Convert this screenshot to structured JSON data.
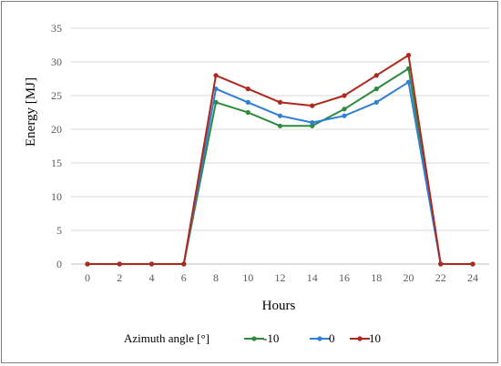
{
  "chart_data": {
    "type": "line",
    "title": "",
    "xlabel": "Hours",
    "ylabel": "Energy [MJ]",
    "x": [
      0,
      2,
      4,
      6,
      8,
      10,
      12,
      14,
      16,
      18,
      20,
      22,
      24
    ],
    "xticks": [
      "0",
      "2",
      "4",
      "6",
      "8",
      "10",
      "12",
      "14",
      "16",
      "18",
      "20",
      "22",
      "24"
    ],
    "ylim": [
      0,
      35
    ],
    "yticks": [
      "0",
      "5",
      "10",
      "15",
      "20",
      "25",
      "30",
      "35"
    ],
    "grid": "horizontal",
    "legend_title": "Azimuth angle [°]",
    "legend_position": "bottom",
    "series": [
      {
        "name": "-10",
        "color": "#2e8b3e",
        "values": [
          0,
          0,
          0,
          0,
          24,
          22.5,
          20.5,
          20.5,
          23,
          26,
          29,
          0,
          0
        ]
      },
      {
        "name": "0",
        "color": "#2f7fd8",
        "values": [
          0,
          0,
          0,
          0,
          26,
          24,
          22,
          21,
          22,
          24,
          27,
          0,
          0
        ]
      },
      {
        "name": "10",
        "color": "#b0281c",
        "values": [
          0,
          0,
          0,
          0,
          28,
          26,
          24,
          23.5,
          25,
          28,
          31,
          0,
          0
        ]
      }
    ]
  }
}
